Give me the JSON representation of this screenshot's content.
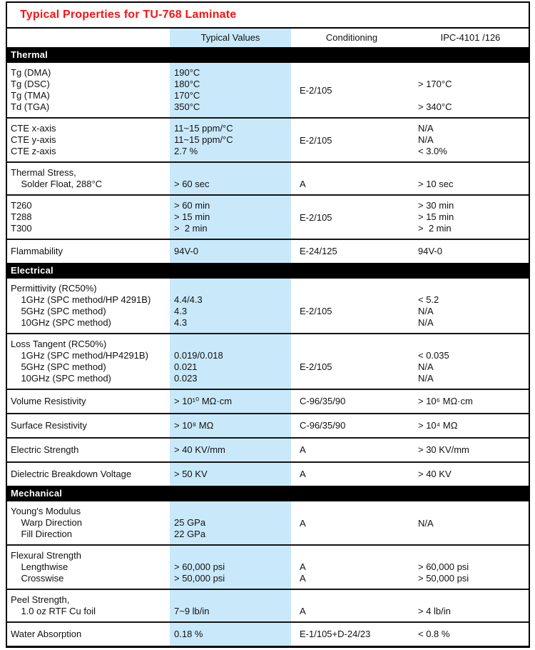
{
  "page": {
    "title": "Typical Properties for TU-768 Laminate"
  },
  "header": {
    "typical": "Typical Values",
    "conditioning": "Conditioning",
    "ipc": "IPC-4101 /126"
  },
  "colors": {
    "title_red": "#f51515",
    "band_blue": "#c9e9fb",
    "section_bg": "#000000",
    "section_fg": "#ffffff",
    "border": "#000000"
  },
  "sections": [
    {
      "name": "Thermal",
      "rows": [
        {
          "property": [
            "Tg (DMA)",
            "Tg (DSC)",
            "Tg (TMA)",
            "Td (TGA)"
          ],
          "typical": [
            "190°C",
            "180°C",
            "170°C",
            "350°C"
          ],
          "cond": {
            "mode": "center",
            "text": "E-2/105"
          },
          "ipc": {
            "mode": "lines",
            "lines": [
              "",
              "> 170°C",
              "",
              "> 340°C"
            ]
          }
        },
        {
          "property": [
            "CTE x-axis",
            "CTE y-axis",
            "CTE z-axis"
          ],
          "typical": [
            "11~15 ppm/°C",
            "11~15 ppm/°C",
            "2.7 %"
          ],
          "cond": {
            "mode": "center",
            "text": "E-2/105"
          },
          "ipc": {
            "mode": "lines",
            "lines": [
              "N/A",
              "N/A",
              "< 3.0%"
            ]
          }
        },
        {
          "property": [
            "Thermal Stress,",
            "    Solder Float, 288°C"
          ],
          "typical": [
            "",
            "> 60 sec"
          ],
          "cond": {
            "mode": "lines",
            "lines": [
              "",
              "A"
            ]
          },
          "ipc": {
            "mode": "lines",
            "lines": [
              "",
              "> 10 sec"
            ]
          }
        },
        {
          "property": [
            "T260",
            "T288",
            "T300"
          ],
          "typical": [
            "> 60 min",
            "> 15 min",
            ">  2 min"
          ],
          "cond": {
            "mode": "center",
            "text": "E-2/105"
          },
          "ipc": {
            "mode": "lines",
            "lines": [
              "> 30 min",
              "> 15 min",
              ">  2 min"
            ]
          }
        },
        {
          "single": true,
          "property": [
            "Flammability"
          ],
          "typical": [
            "94V-0"
          ],
          "cond": {
            "mode": "lines",
            "lines": [
              "E-24/125"
            ]
          },
          "ipc": {
            "mode": "lines",
            "lines": [
              "94V-0"
            ]
          }
        }
      ]
    },
    {
      "name": "Electrical",
      "rows": [
        {
          "property": [
            "Permittivity (RC50%)",
            "    1GHz (SPC method/HP 4291B)",
            "    5GHz (SPC method)",
            "    10GHz (SPC method)"
          ],
          "typical": [
            "",
            "4.4/4.3",
            "4.3",
            "4.3"
          ],
          "cond": {
            "mode": "lines",
            "lines": [
              "",
              "",
              "E-2/105",
              ""
            ]
          },
          "ipc": {
            "mode": "lines",
            "lines": [
              "",
              "< 5.2",
              "N/A",
              "N/A"
            ]
          }
        },
        {
          "property": [
            "Loss Tangent (RC50%)",
            "    1GHz (SPC method/HP4291B)",
            "    5GHz (SPC method)",
            "    10GHz (SPC method)"
          ],
          "typical": [
            "",
            "0.019/0.018",
            "0.021",
            "0.023"
          ],
          "cond": {
            "mode": "lines",
            "lines": [
              "",
              "",
              "E-2/105",
              ""
            ]
          },
          "ipc": {
            "mode": "lines",
            "lines": [
              "",
              "< 0.035",
              "N/A",
              "N/A"
            ]
          }
        },
        {
          "single": true,
          "property": [
            "Volume Resistivity"
          ],
          "typical": [
            "> 10¹⁰ MΩ·cm"
          ],
          "cond": {
            "mode": "lines",
            "lines": [
              "C-96/35/90"
            ]
          },
          "ipc": {
            "mode": "lines",
            "lines": [
              "> 10⁶ MΩ·cm"
            ]
          }
        },
        {
          "single": true,
          "property": [
            "Surface Resistivity"
          ],
          "typical": [
            "> 10⁸ MΩ"
          ],
          "cond": {
            "mode": "lines",
            "lines": [
              "C-96/35/90"
            ]
          },
          "ipc": {
            "mode": "lines",
            "lines": [
              "> 10⁴ MΩ"
            ]
          }
        },
        {
          "single": true,
          "property": [
            "Electric Strength"
          ],
          "typical": [
            "> 40 KV/mm"
          ],
          "cond": {
            "mode": "lines",
            "lines": [
              "A"
            ]
          },
          "ipc": {
            "mode": "lines",
            "lines": [
              "> 30 KV/mm"
            ]
          }
        },
        {
          "single": true,
          "property": [
            "Dielectric Breakdown Voltage"
          ],
          "typical": [
            "> 50 KV"
          ],
          "cond": {
            "mode": "lines",
            "lines": [
              "A"
            ]
          },
          "ipc": {
            "mode": "lines",
            "lines": [
              "> 40 KV"
            ]
          }
        }
      ]
    },
    {
      "name": "Mechanical",
      "rows": [
        {
          "property": [
            "Young's Modulus",
            "    Warp Direction",
            "    Fill Direction"
          ],
          "typical": [
            "",
            "25 GPa",
            "22 GPa"
          ],
          "cond": {
            "mode": "center",
            "text": "A"
          },
          "ipc": {
            "mode": "center",
            "text": "N/A"
          }
        },
        {
          "property": [
            "Flexural Strength",
            "    Lengthwise",
            "    Crosswise"
          ],
          "typical": [
            "",
            "> 60,000 psi",
            "> 50,000 psi"
          ],
          "cond": {
            "mode": "lines",
            "lines": [
              "",
              "A",
              "A"
            ]
          },
          "ipc": {
            "mode": "lines",
            "lines": [
              "",
              "> 60,000 psi",
              "> 50,000 psi"
            ]
          }
        },
        {
          "property": [
            "Peel Strength,",
            "    1.0 oz RTF Cu foil"
          ],
          "typical": [
            "",
            "7~9 lb/in"
          ],
          "cond": {
            "mode": "lines",
            "lines": [
              "",
              "A"
            ]
          },
          "ipc": {
            "mode": "lines",
            "lines": [
              "",
              "> 4 lb/in"
            ]
          }
        },
        {
          "single": true,
          "property": [
            "Water Absorption"
          ],
          "typical": [
            "0.18 %"
          ],
          "cond": {
            "mode": "lines",
            "lines": [
              "E-1/105+D-24/23"
            ]
          },
          "ipc": {
            "mode": "lines",
            "lines": [
              "< 0.8 %"
            ]
          }
        }
      ]
    }
  ]
}
